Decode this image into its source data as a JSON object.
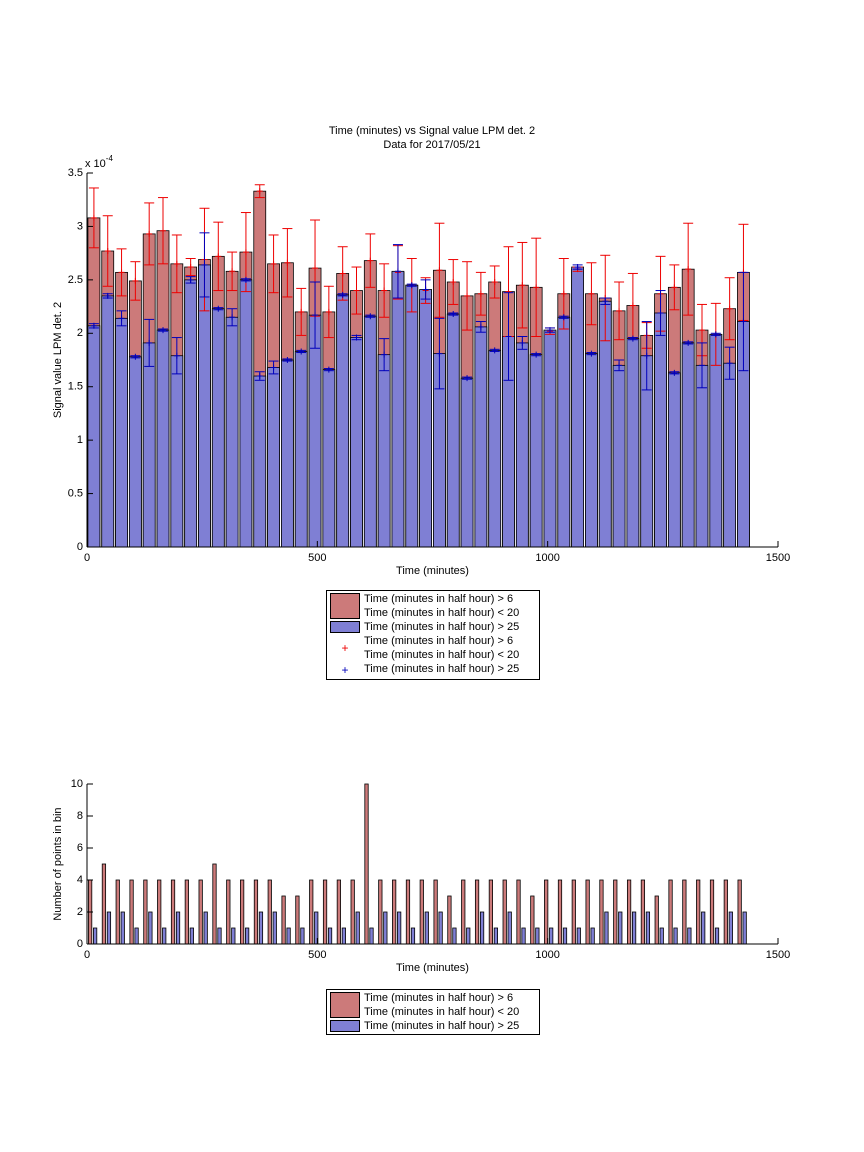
{
  "chart_data": [
    {
      "type": "bar",
      "barmode": "overlay",
      "title": "Time (minutes) vs Signal value LPM det. 2",
      "subtitle": "Data for 2017/05/21",
      "y_multiplier": {
        "base": "x 10",
        "exponent": "-4"
      },
      "xlabel": "Time (minutes)",
      "ylabel": "Signal value LPM det. 2",
      "x": [
        15,
        45,
        75,
        105,
        135,
        165,
        195,
        225,
        255,
        285,
        315,
        345,
        375,
        405,
        435,
        465,
        495,
        525,
        555,
        585,
        615,
        645,
        675,
        705,
        735,
        765,
        795,
        825,
        855,
        885,
        915,
        945,
        975,
        1005,
        1035,
        1065,
        1095,
        1125,
        1155,
        1185,
        1215,
        1245,
        1275,
        1305,
        1335,
        1365,
        1395,
        1425
      ],
      "series": [
        {
          "name": "Time (minutes in half hour) > 6\nTime (minutes in half hour) < 20",
          "color": "#cc7a7a",
          "error_color": "#ee0000",
          "values": [
            3.08,
            2.77,
            2.57,
            2.49,
            2.93,
            2.96,
            2.65,
            2.62,
            2.69,
            2.72,
            2.58,
            2.76,
            3.33,
            2.65,
            2.66,
            2.2,
            2.61,
            2.2,
            2.56,
            2.4,
            2.68,
            2.4,
            2.57,
            2.45,
            2.4,
            2.59,
            2.48,
            2.35,
            2.37,
            2.48,
            2.39,
            2.45,
            2.43,
            2.02,
            2.37,
            2.6,
            2.37,
            2.33,
            2.21,
            2.26,
            1.98,
            2.37,
            2.43,
            2.6,
            2.03,
            1.99,
            2.23,
            2.57
          ],
          "errors": [
            0.28,
            0.33,
            0.22,
            0.18,
            0.29,
            0.31,
            0.27,
            0.08,
            0.48,
            0.32,
            0.18,
            0.37,
            0.06,
            0.27,
            0.32,
            0.22,
            0.45,
            0.24,
            0.25,
            0.22,
            0.25,
            0.25,
            0.25,
            0.25,
            0.12,
            0.44,
            0.21,
            0.32,
            0.2,
            0.15,
            0.42,
            0.4,
            0.46,
            0.03,
            0.33,
            0.02,
            0.29,
            0.4,
            0.27,
            0.3,
            0.12,
            0.35,
            0.21,
            0.43,
            0.24,
            0.29,
            0.29,
            0.45
          ]
        },
        {
          "name": "Time (minutes in half hour) > 25",
          "color": "#7f7fd4",
          "error_color": "#0000bb",
          "values": [
            2.07,
            2.35,
            2.14,
            1.78,
            1.91,
            2.03,
            1.79,
            2.5,
            2.64,
            2.23,
            2.15,
            2.5,
            1.6,
            1.68,
            1.75,
            1.83,
            2.17,
            1.66,
            2.36,
            1.96,
            2.16,
            1.8,
            2.58,
            2.45,
            2.41,
            1.81,
            2.18,
            1.58,
            2.06,
            1.84,
            1.97,
            1.91,
            1.8,
            2.03,
            2.15,
            2.62,
            1.81,
            2.3,
            1.7,
            1.95,
            1.79,
            2.19,
            1.63,
            1.91,
            1.7,
            1.99,
            1.72,
            2.11
          ],
          "errors": [
            0.02,
            0.02,
            0.07,
            0.01,
            0.22,
            0.01,
            0.17,
            0.03,
            0.3,
            0.01,
            0.08,
            0.01,
            0.04,
            0.06,
            0.01,
            0.01,
            0.31,
            0.01,
            0.01,
            0.02,
            0.01,
            0.15,
            0.25,
            0.01,
            0.09,
            0.33,
            0.01,
            0.01,
            0.05,
            0.01,
            0.41,
            0.06,
            0.01,
            0.02,
            0.01,
            0.02,
            0.01,
            0.03,
            0.05,
            0.01,
            0.32,
            0.21,
            0.01,
            0.01,
            0.21,
            0.01,
            0.15,
            0.46
          ]
        }
      ],
      "xlim": [
        0,
        1500
      ],
      "xticks": [
        0,
        500,
        1000,
        1500
      ],
      "ylim": [
        0,
        3.5
      ],
      "yticks": [
        0,
        0.5,
        1,
        1.5,
        2,
        2.5,
        3,
        3.5
      ]
    },
    {
      "type": "bar",
      "barmode": "grouped",
      "xlabel": "Time (minutes)",
      "ylabel": "Number of points in bin",
      "x": [
        15,
        45,
        75,
        105,
        135,
        165,
        195,
        225,
        255,
        285,
        315,
        345,
        375,
        405,
        435,
        465,
        495,
        525,
        555,
        585,
        615,
        645,
        675,
        705,
        735,
        765,
        795,
        825,
        855,
        885,
        915,
        945,
        975,
        1005,
        1035,
        1065,
        1095,
        1125,
        1155,
        1185,
        1215,
        1245,
        1275,
        1305,
        1335,
        1365,
        1395,
        1425
      ],
      "series": [
        {
          "name": "Time (minutes in half hour) > 6\nTime (minutes in half hour) < 20",
          "color": "#cc7a7a",
          "values": [
            4,
            5,
            4,
            4,
            4,
            4,
            4,
            4,
            4,
            5,
            4,
            4,
            4,
            4,
            3,
            3,
            4,
            4,
            4,
            4,
            10,
            4,
            4,
            4,
            4,
            4,
            3,
            4,
            4,
            4,
            4,
            4,
            3,
            4,
            4,
            4,
            4,
            4,
            4,
            4,
            4,
            3,
            4,
            4,
            4,
            4,
            4,
            4
          ]
        },
        {
          "name": "Time (minutes in half hour) > 25",
          "color": "#7f7fd4",
          "values": [
            1,
            2,
            2,
            1,
            2,
            1,
            2,
            1,
            2,
            1,
            1,
            1,
            2,
            2,
            1,
            1,
            2,
            1,
            1,
            2,
            1,
            2,
            2,
            1,
            2,
            2,
            1,
            1,
            2,
            1,
            2,
            1,
            1,
            1,
            1,
            1,
            1,
            2,
            2,
            2,
            2,
            1,
            1,
            1,
            2,
            1,
            2,
            2
          ]
        }
      ],
      "xlim": [
        0,
        1500
      ],
      "xticks": [
        0,
        500,
        1000,
        1500
      ],
      "ylim": [
        0,
        10
      ],
      "yticks": [
        0,
        2,
        4,
        6,
        8,
        10
      ]
    }
  ]
}
